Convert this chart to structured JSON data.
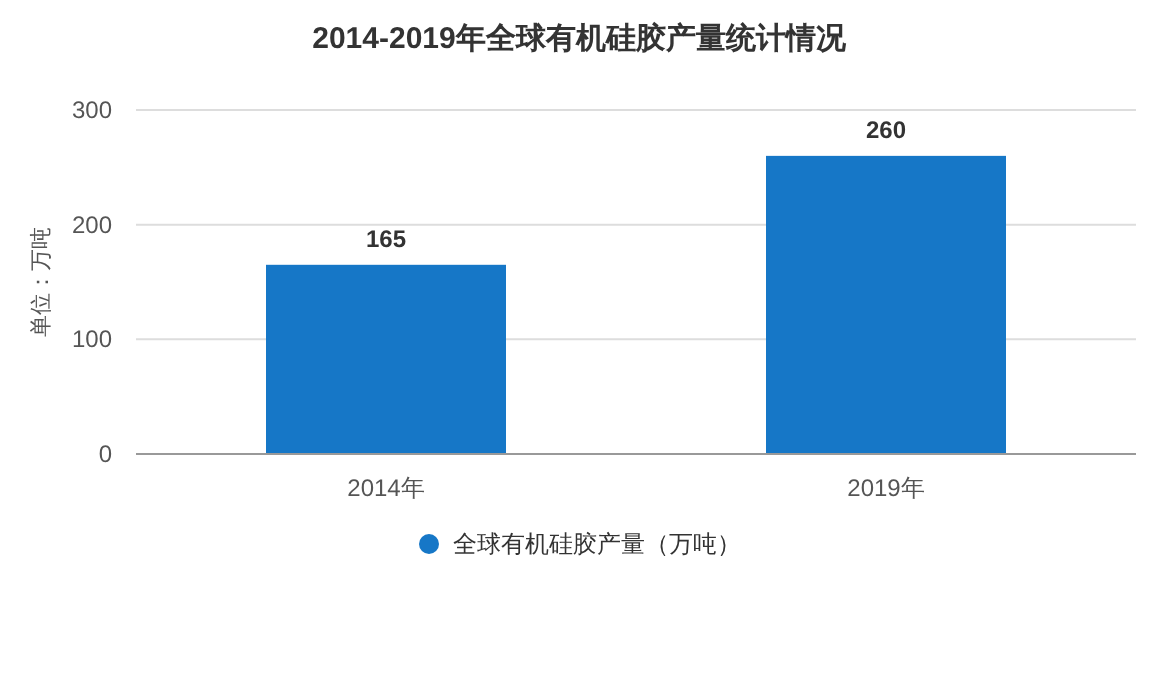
{
  "chart_data": {
    "type": "bar",
    "title": "2014-2019年全球有机硅胶产量统计情况",
    "ylabel": "单位：万吨",
    "categories": [
      "2014年",
      "2019年"
    ],
    "series": [
      {
        "name": "全球有机硅胶产量（万吨）",
        "color": "#1677c7",
        "values": [
          165,
          260
        ]
      }
    ],
    "ylim": [
      0,
      300
    ],
    "yticks": [
      0,
      100,
      200,
      300
    ],
    "grid": "y",
    "legend": "bottom",
    "data_labels": true
  }
}
